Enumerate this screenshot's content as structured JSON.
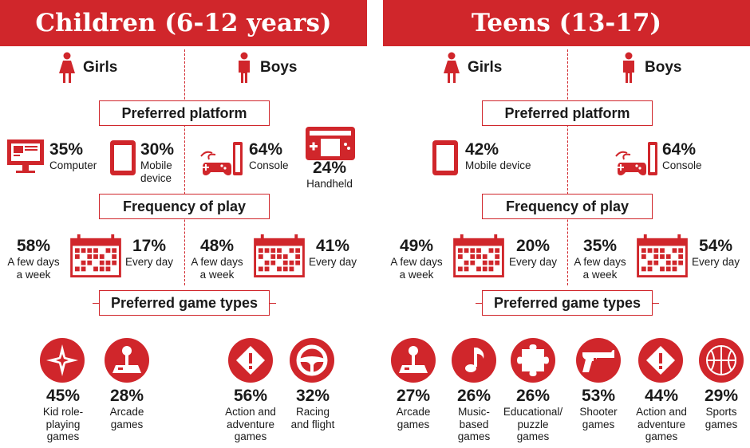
{
  "colors": {
    "accent": "#d0262b",
    "text": "#1a1a1a",
    "background": "#ffffff"
  },
  "children": {
    "title": "Children (6-12 years)",
    "girls_label": "Girls",
    "boys_label": "Boys",
    "platform_header": "Preferred platform",
    "frequency_header": "Frequency of play",
    "game_types_header": "Preferred game types",
    "girls_platforms": [
      {
        "pct": "35%",
        "label": "Computer",
        "icon": "computer-icon"
      },
      {
        "pct": "30%",
        "label": "Mobile\ndevice",
        "icon": "tablet-icon"
      }
    ],
    "boys_platforms": [
      {
        "pct": "64%",
        "label": "Console",
        "icon": "console-icon"
      },
      {
        "pct": "24%",
        "label": "Handheld",
        "icon": "handheld-icon"
      }
    ],
    "girls_frequency": [
      {
        "pct": "58%",
        "label": "A few days\na week"
      },
      {
        "pct": "17%",
        "label": "Every day"
      }
    ],
    "boys_frequency": [
      {
        "pct": "48%",
        "label": "A few days\na week"
      },
      {
        "pct": "41%",
        "label": "Every day"
      }
    ],
    "girls_games": [
      {
        "pct": "45%",
        "label": "Kid role-\nplaying\ngames",
        "icon": "compass-star-icon"
      },
      {
        "pct": "28%",
        "label": "Arcade\ngames",
        "icon": "joystick-icon"
      }
    ],
    "boys_games": [
      {
        "pct": "56%",
        "label": "Action and\nadventure\ngames",
        "icon": "exclamation-icon"
      },
      {
        "pct": "32%",
        "label": "Racing\nand flight",
        "icon": "steering-wheel-icon"
      }
    ]
  },
  "teens": {
    "title": "Teens (13-17)",
    "girls_label": "Girls",
    "boys_label": "Boys",
    "platform_header": "Preferred platform",
    "frequency_header": "Frequency of play",
    "game_types_header": "Preferred game types",
    "girls_platforms": [
      {
        "pct": "42%",
        "label": "Mobile device",
        "icon": "tablet-icon"
      }
    ],
    "boys_platforms": [
      {
        "pct": "64%",
        "label": "Console",
        "icon": "console-icon"
      }
    ],
    "girls_frequency": [
      {
        "pct": "49%",
        "label": "A few days\na week"
      },
      {
        "pct": "20%",
        "label": "Every day"
      }
    ],
    "boys_frequency": [
      {
        "pct": "35%",
        "label": "A few days\na week"
      },
      {
        "pct": "54%",
        "label": "Every day"
      }
    ],
    "girls_games": [
      {
        "pct": "27%",
        "label": "Arcade\ngames",
        "icon": "joystick-icon"
      },
      {
        "pct": "26%",
        "label": "Music-\nbased\ngames",
        "icon": "music-note-icon"
      },
      {
        "pct": "26%",
        "label": "Educational/\npuzzle\ngames",
        "icon": "puzzle-piece-icon"
      }
    ],
    "boys_games": [
      {
        "pct": "53%",
        "label": "Shooter\ngames",
        "icon": "gun-icon"
      },
      {
        "pct": "44%",
        "label": "Action and\nadventure\ngames",
        "icon": "exclamation-icon"
      },
      {
        "pct": "29%",
        "label": "Sports\ngames",
        "icon": "basketball-icon"
      }
    ]
  }
}
